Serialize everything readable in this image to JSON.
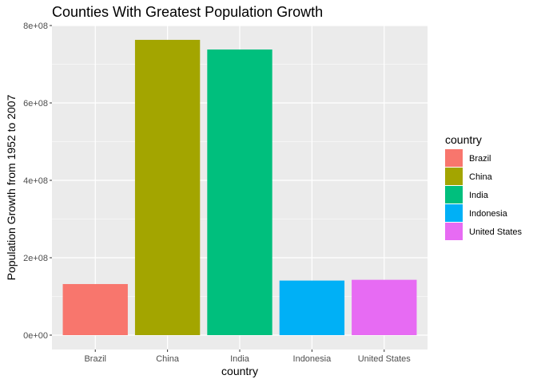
{
  "chart_data": {
    "type": "bar",
    "title": "Counties With Greatest Population Growth",
    "xlabel": "country",
    "ylabel": "Population Growth from 1952 to 2007",
    "categories": [
      "Brazil",
      "China",
      "India",
      "Indonesia",
      "United States"
    ],
    "values": [
      132000000,
      763000000,
      738000000,
      141000000,
      143000000
    ],
    "colors": [
      "#F8766D",
      "#A3A500",
      "#00BF7D",
      "#00B0F6",
      "#E76BF3"
    ],
    "ylim": [
      0,
      800000000
    ],
    "yticks": [
      0,
      200000000,
      400000000,
      600000000,
      800000000
    ],
    "ytick_labels": [
      "0e+00",
      "2e+08",
      "4e+08",
      "6e+08",
      "8e+08"
    ],
    "grid": true,
    "panel_background": "#EBEBEB",
    "legend": {
      "title": "country",
      "placement": "right",
      "entries": [
        "Brazil",
        "China",
        "India",
        "Indonesia",
        "United States"
      ]
    }
  }
}
